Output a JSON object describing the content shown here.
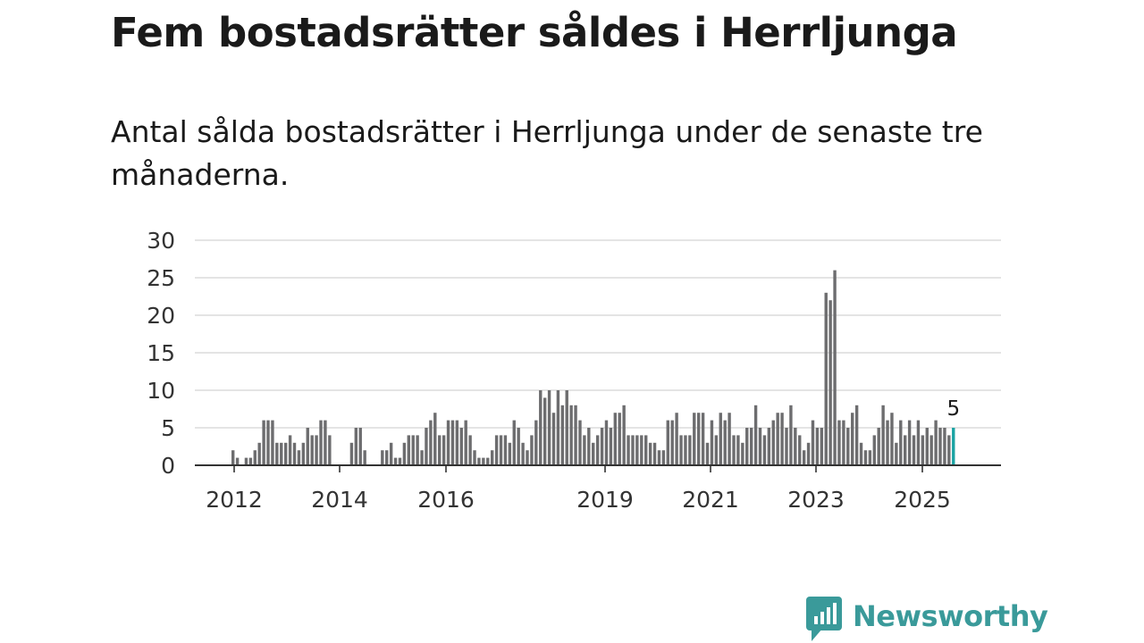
{
  "title": "Fem bostadsrätter såldes i Herrljunga",
  "subtitle": "Antal sålda bostadsrätter i Herrljunga under de senaste tre månaderna.",
  "brand": {
    "name": "Newsworthy",
    "color": "#3a9a9a"
  },
  "chart_data": {
    "type": "bar",
    "title": "Fem bostadsrätter såldes i Herrljunga",
    "xlabel": "",
    "ylabel": "",
    "ylim": [
      0,
      30
    ],
    "yticks": [
      0,
      5,
      10,
      15,
      20,
      25,
      30
    ],
    "xtick_labels": [
      "2012",
      "2014",
      "2016",
      "2019",
      "2021",
      "2023",
      "2025"
    ],
    "grid": true,
    "bar_color": "#6d6d6f",
    "highlight_color": "#1aa3a3",
    "highlight_label": "5",
    "values": [
      2,
      1,
      0,
      1,
      1,
      2,
      3,
      6,
      6,
      6,
      3,
      3,
      3,
      4,
      3,
      2,
      3,
      5,
      4,
      4,
      6,
      6,
      4,
      0,
      0,
      0,
      0,
      3,
      5,
      5,
      2,
      0,
      0,
      0,
      2,
      2,
      3,
      1,
      1,
      3,
      4,
      4,
      4,
      2,
      5,
      6,
      7,
      4,
      4,
      6,
      6,
      6,
      5,
      6,
      4,
      2,
      1,
      1,
      1,
      2,
      4,
      4,
      4,
      3,
      6,
      5,
      3,
      2,
      4,
      6,
      10,
      9,
      10,
      7,
      10,
      8,
      10,
      8,
      8,
      6,
      4,
      5,
      3,
      4,
      5,
      6,
      5,
      7,
      7,
      8,
      4,
      4,
      4,
      4,
      4,
      3,
      3,
      2,
      2,
      6,
      6,
      7,
      4,
      4,
      4,
      7,
      7,
      7,
      3,
      6,
      4,
      7,
      6,
      7,
      4,
      4,
      3,
      5,
      5,
      8,
      5,
      4,
      5,
      6,
      7,
      7,
      5,
      8,
      5,
      4,
      2,
      3,
      6,
      5,
      5,
      23,
      22,
      26,
      6,
      6,
      5,
      7,
      8,
      3,
      2,
      2,
      4,
      5,
      8,
      6,
      7,
      3,
      6,
      4,
      6,
      4,
      6,
      4,
      5,
      4,
      6,
      5,
      5,
      4,
      5
    ]
  }
}
